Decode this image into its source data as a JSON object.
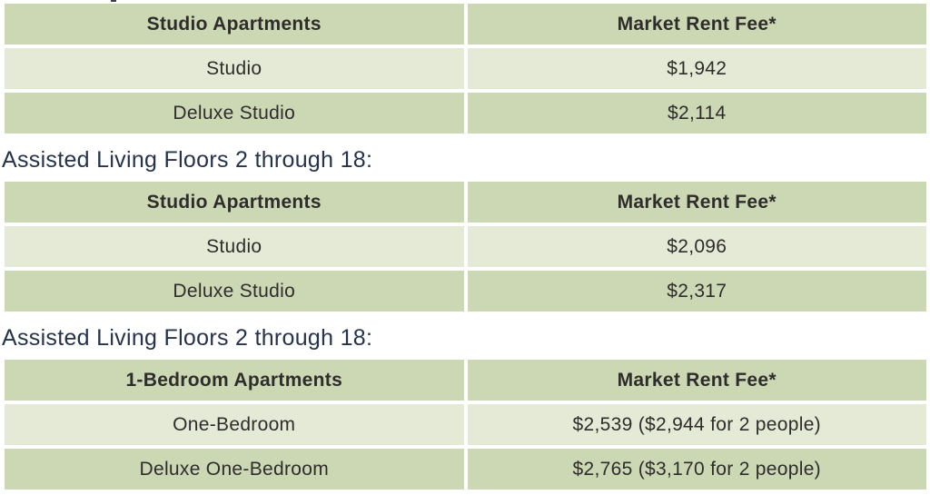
{
  "colors": {
    "table_header_bg": "#ccd7b4",
    "row_dark_bg": "#ccd7b4",
    "row_light_bg": "#e5ead7",
    "gutter": "#ffffff",
    "heading_text": "#26334b",
    "cell_text": "#2e2d2c"
  },
  "sections": [
    {
      "heading": null,
      "table": {
        "header": [
          "Studio Apartments",
          "Market Rent Fee*"
        ],
        "rows": [
          [
            "Studio",
            "$1,942"
          ],
          [
            "Deluxe Studio",
            "$2,114"
          ]
        ]
      }
    },
    {
      "heading": "Assisted Living Floors 2 through 18:",
      "table": {
        "header": [
          "Studio Apartments",
          "Market Rent Fee*"
        ],
        "rows": [
          [
            "Studio",
            "$2,096"
          ],
          [
            "Deluxe Studio",
            "$2,317"
          ]
        ]
      }
    },
    {
      "heading": "Assisted Living Floors 2 through 18:",
      "table": {
        "header": [
          "1-Bedroom Apartments",
          "Market Rent Fee*"
        ],
        "rows": [
          [
            "One-Bedroom",
            "$2,539 ($2,944 for 2 people)"
          ],
          [
            "Deluxe One-Bedroom",
            "$2,765 ($3,170 for 2 people)"
          ]
        ]
      }
    }
  ]
}
